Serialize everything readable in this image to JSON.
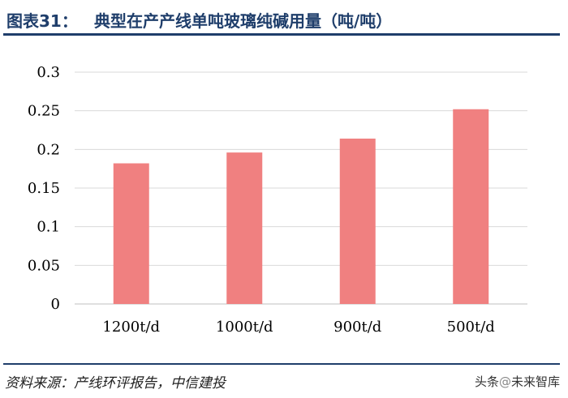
{
  "header": {
    "figure_label": "图表31：",
    "figure_title": "典型在产产线单吨玻璃纯碱用量（吨/吨）"
  },
  "footer": {
    "source": "资料来源：产线环评报告，中信建投",
    "watermark_prefix": "头条",
    "watermark_at": "@",
    "watermark_name": "未来智库"
  },
  "chart_data": {
    "type": "bar",
    "title": "典型在产产线单吨玻璃纯碱用量（吨/吨）",
    "categories": [
      "1200t/d",
      "1000t/d",
      "900t/d",
      "500t/d"
    ],
    "values": [
      0.182,
      0.196,
      0.214,
      0.252
    ],
    "ylim": [
      0,
      0.3
    ],
    "yticks": [
      "0",
      "0.05",
      "0.1",
      "0.15",
      "0.2",
      "0.25",
      "0.3"
    ],
    "ytick_values": [
      0,
      0.05,
      0.1,
      0.15,
      0.2,
      0.25,
      0.3
    ],
    "grid": true,
    "bar_color": "#f08080",
    "grid_color": "#d9d9d9"
  }
}
